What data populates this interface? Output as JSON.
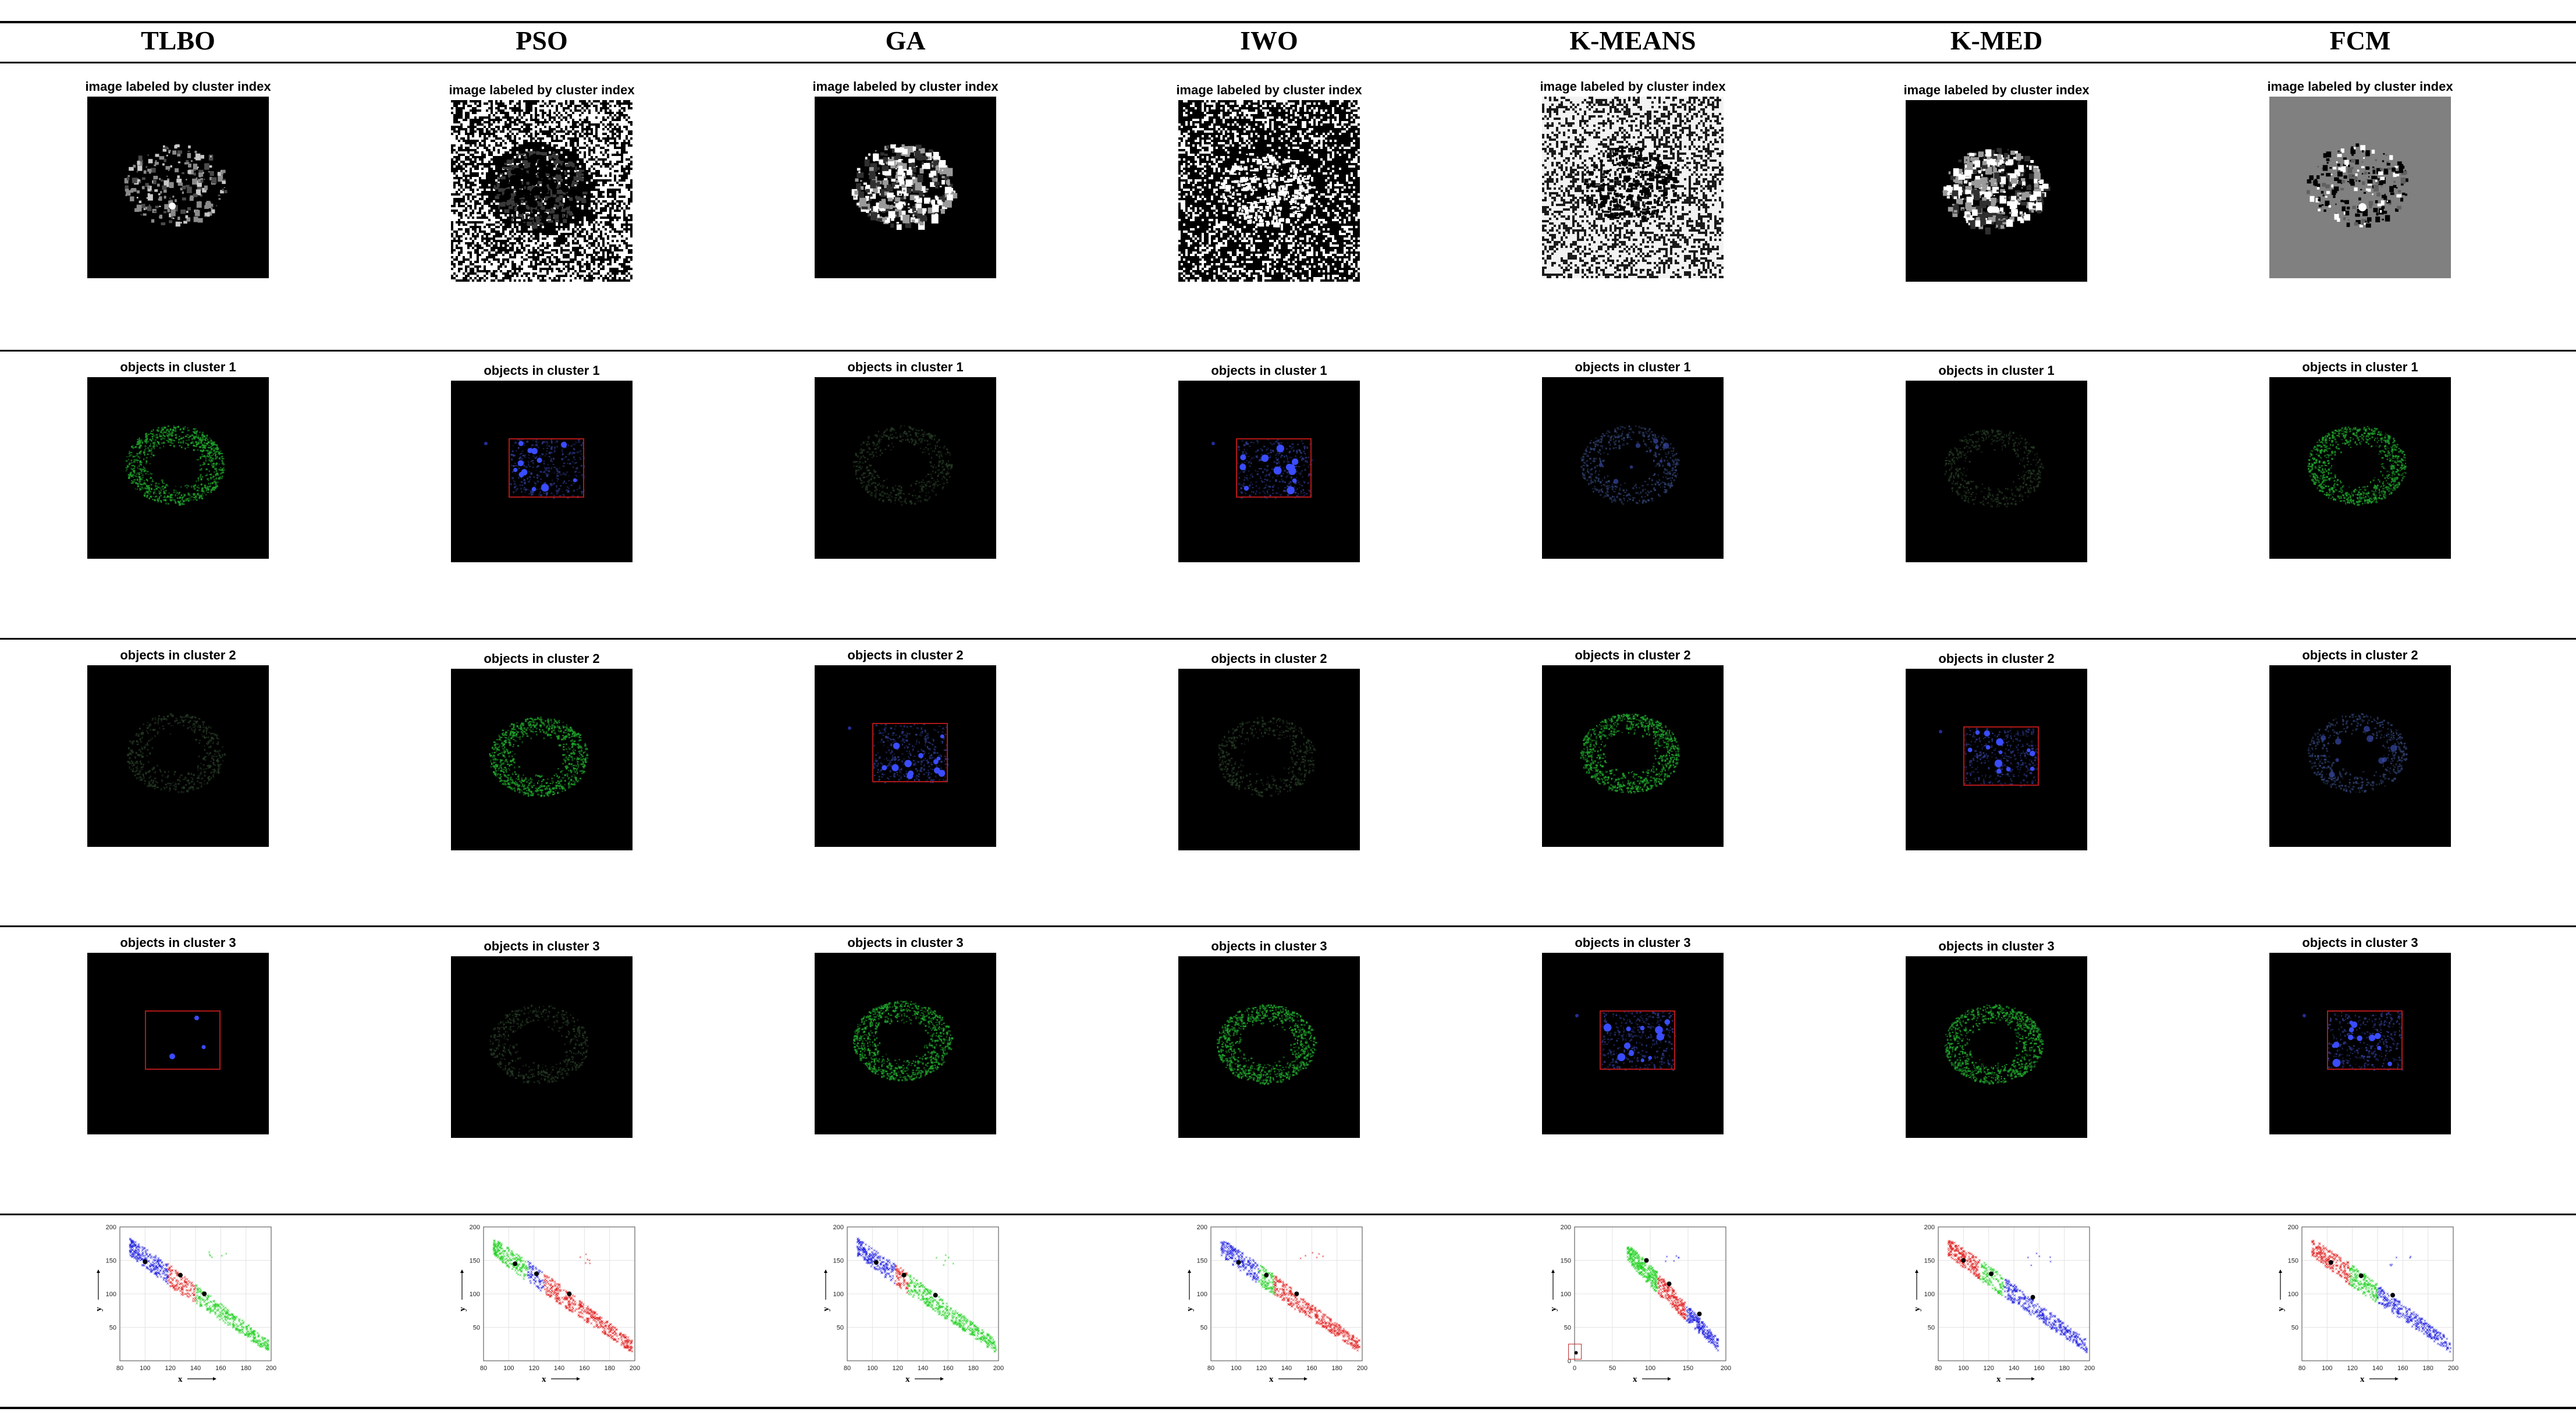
{
  "columns": [
    "TLBO",
    "PSO",
    "GA",
    "IWO",
    "K-MEANS",
    "K-MED",
    "FCM"
  ],
  "rows": [
    {
      "titles": [
        "image labeled by cluster index",
        "image labeled by cluster index",
        "image labeled by cluster index",
        "image labeled by cluster index",
        "image labeled by cluster index",
        "image labeled by cluster index",
        "image labeled by cluster index"
      ],
      "kinds": [
        "label-dark",
        "label-noise-mid",
        "label-dark-bright",
        "label-noise-dark",
        "label-noise-light",
        "label-dark-bright",
        "label-gray"
      ]
    },
    {
      "titles": [
        "objects in cluster 1",
        "objects in cluster 1",
        "objects in cluster 1",
        "objects in cluster 1",
        "objects in cluster 1",
        "objects in cluster 1",
        "objects in cluster 1"
      ],
      "kinds": [
        "green",
        "box",
        "faint",
        "box",
        "bluefaint",
        "faint",
        "green"
      ]
    },
    {
      "titles": [
        "objects in cluster 2",
        "objects in cluster 2",
        "objects in cluster 2",
        "objects in cluster 2",
        "objects in cluster 2",
        "objects in cluster 2",
        "objects in cluster 2"
      ],
      "kinds": [
        "faint",
        "green",
        "box",
        "faint",
        "green",
        "box",
        "bluefaint"
      ]
    },
    {
      "titles": [
        "objects in cluster 3",
        "objects in cluster 3",
        "objects in cluster 3",
        "objects in cluster 3",
        "objects in cluster 3",
        "objects in cluster 3",
        "objects in cluster 3"
      ],
      "kinds": [
        "box-empty",
        "faint",
        "green",
        "green",
        "box",
        "green",
        "box"
      ]
    }
  ],
  "scatter_axes": {
    "xlabel": "x",
    "ylabel": "y",
    "default": {
      "xticks": [
        80,
        100,
        120,
        140,
        160,
        180,
        200
      ],
      "yticks": [
        50,
        100,
        150,
        200
      ]
    },
    "kmeans": {
      "xticks": [
        0,
        50,
        100,
        150,
        200
      ],
      "yticks": [
        0,
        50,
        100,
        150,
        200
      ]
    }
  },
  "chart_data": [
    {
      "type": "scatter",
      "method": "TLBO",
      "xlim": [
        80,
        200
      ],
      "ylim": [
        0,
        200
      ],
      "color_order": [
        "#2020e0",
        "#e02020",
        "#20d020"
      ],
      "split": [
        118,
        140
      ],
      "centroids": [
        [
          100,
          148
        ],
        [
          128,
          128
        ],
        [
          147,
          100
        ]
      ]
    },
    {
      "type": "scatter",
      "method": "PSO",
      "xlim": [
        80,
        200
      ],
      "ylim": [
        0,
        200
      ],
      "color_order": [
        "#20d020",
        "#2020e0",
        "#e02020"
      ],
      "split": [
        115,
        128
      ],
      "centroids": [
        [
          105,
          145
        ],
        [
          122,
          130
        ],
        [
          148,
          100
        ]
      ]
    },
    {
      "type": "scatter",
      "method": "GA",
      "xlim": [
        80,
        200
      ],
      "ylim": [
        0,
        200
      ],
      "color_order": [
        "#2020e0",
        "#e02020",
        "#20d020"
      ],
      "split": [
        118,
        128
      ],
      "centroids": [
        [
          103,
          147
        ],
        [
          125,
          128
        ],
        [
          150,
          98
        ]
      ]
    },
    {
      "type": "scatter",
      "method": "IWO",
      "xlim": [
        80,
        200
      ],
      "ylim": [
        0,
        200
      ],
      "color_order": [
        "#2020e0",
        "#20d020",
        "#e02020"
      ],
      "split": [
        118,
        130
      ],
      "centroids": [
        [
          102,
          147
        ],
        [
          124,
          128
        ],
        [
          148,
          100
        ]
      ]
    },
    {
      "type": "scatter",
      "method": "K-MEANS",
      "xlim": [
        0,
        200
      ],
      "ylim": [
        0,
        200
      ],
      "color_order": [
        "#20d020",
        "#e02020",
        "#2020e0"
      ],
      "split": [
        110,
        148
      ],
      "centroids": [
        [
          95,
          150
        ],
        [
          125,
          115
        ],
        [
          165,
          70
        ]
      ]
    },
    {
      "type": "scatter",
      "method": "K-MED",
      "xlim": [
        80,
        200
      ],
      "ylim": [
        0,
        200
      ],
      "color_order": [
        "#e02020",
        "#20d020",
        "#2020e0"
      ],
      "split": [
        113,
        132
      ],
      "centroids": [
        [
          100,
          150
        ],
        [
          122,
          130
        ],
        [
          155,
          95
        ]
      ]
    },
    {
      "type": "scatter",
      "method": "FCM",
      "xlim": [
        80,
        200
      ],
      "ylim": [
        0,
        200
      ],
      "color_order": [
        "#e02020",
        "#20d020",
        "#2020e0"
      ],
      "split": [
        118,
        140
      ],
      "centroids": [
        [
          103,
          147
        ],
        [
          127,
          127
        ],
        [
          152,
          98
        ]
      ]
    }
  ]
}
